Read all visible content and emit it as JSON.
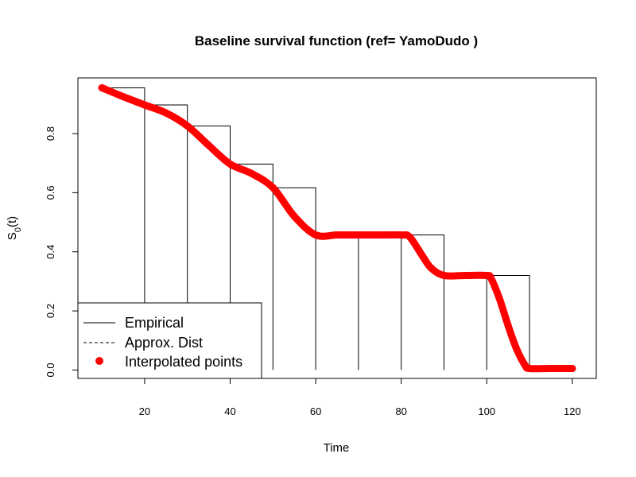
{
  "chart_data": {
    "type": "line",
    "title": "Baseline survival function (ref= YamoDudo )",
    "xlabel": "Time",
    "ylabel_main": "S",
    "ylabel_sub": "0",
    "ylabel_tail": "(t)",
    "xlim": [
      4.4,
      125.6
    ],
    "ylim": [
      -0.0285,
      0.9885
    ],
    "x_ticks": [
      20,
      40,
      60,
      80,
      100,
      120
    ],
    "x_tick_labels": [
      "20",
      "40",
      "60",
      "80",
      "100",
      "120"
    ],
    "y_ticks": [
      0.0,
      0.2,
      0.4,
      0.6,
      0.8
    ],
    "y_tick_labels": [
      "0.0",
      "0.2",
      "0.4",
      "0.6",
      "0.8"
    ],
    "legend_position": "bottom-left",
    "legend": [
      {
        "label": "Empirical",
        "style": "solid-line"
      },
      {
        "label": "Approx. Dist",
        "style": "dashed-line"
      },
      {
        "label": "Interpolated points",
        "style": "point"
      }
    ],
    "colors": {
      "empirical": "#000000",
      "interpolated": "#ff0000"
    },
    "series": [
      {
        "name": "Empirical",
        "style": "step-bars",
        "steps": [
          {
            "x_start": 10,
            "x_end": 20,
            "y": 0.955
          },
          {
            "x_start": 20,
            "x_end": 30,
            "y": 0.897
          },
          {
            "x_start": 30,
            "x_end": 40,
            "y": 0.826
          },
          {
            "x_start": 40,
            "x_end": 50,
            "y": 0.697
          },
          {
            "x_start": 50,
            "x_end": 60,
            "y": 0.617
          },
          {
            "x_start": 60,
            "x_end": 70,
            "y": 0.457
          },
          {
            "x_start": 70,
            "x_end": 80,
            "y": 0.457
          },
          {
            "x_start": 80,
            "x_end": 90,
            "y": 0.457
          },
          {
            "x_start": 90,
            "x_end": 100,
            "y": 0.32
          },
          {
            "x_start": 100,
            "x_end": 110,
            "y": 0.32
          },
          {
            "x_start": 110,
            "x_end": 120,
            "y": 0.005
          }
        ]
      },
      {
        "name": "Interpolated points",
        "style": "points",
        "x": [
          10,
          15,
          20,
          25,
          30,
          35,
          40,
          45,
          50,
          55,
          60,
          65,
          70,
          75,
          80,
          82,
          85,
          87,
          90,
          95,
          100,
          101,
          103,
          105,
          107,
          109,
          110,
          115,
          120
        ],
        "y": [
          0.955,
          0.925,
          0.897,
          0.87,
          0.826,
          0.76,
          0.697,
          0.665,
          0.617,
          0.52,
          0.457,
          0.457,
          0.457,
          0.457,
          0.457,
          0.45,
          0.385,
          0.345,
          0.32,
          0.32,
          0.32,
          0.31,
          0.24,
          0.15,
          0.07,
          0.015,
          0.005,
          0.005,
          0.005
        ]
      }
    ]
  }
}
